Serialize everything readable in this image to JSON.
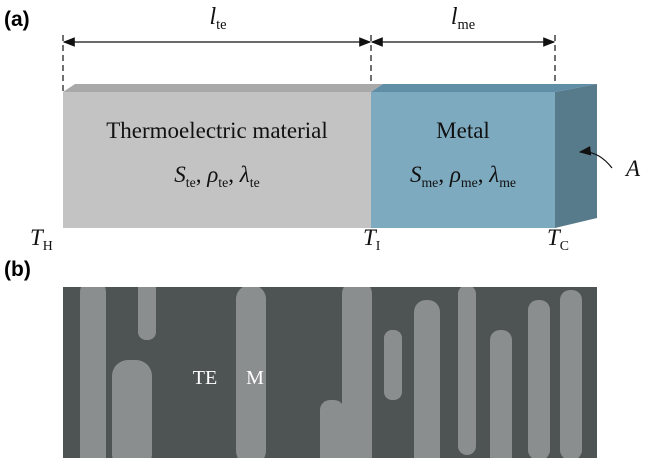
{
  "panel_a": {
    "label": "(a)",
    "lengths": [
      {
        "symbol": "l",
        "subscript": "te"
      },
      {
        "symbol": "l",
        "subscript": "me"
      }
    ],
    "segments": [
      {
        "name": "Thermoelectric material",
        "properties": [
          {
            "symbol": "S",
            "subscript": "te"
          },
          {
            "symbol": "ρ",
            "subscript": "te"
          },
          {
            "symbol": "λ",
            "subscript": "te"
          }
        ]
      },
      {
        "name": "Metal",
        "properties": [
          {
            "symbol": "S",
            "subscript": "me"
          },
          {
            "symbol": "ρ",
            "subscript": "me"
          },
          {
            "symbol": "λ",
            "subscript": "me"
          }
        ]
      }
    ],
    "separator": ",",
    "area_label": "A",
    "temperatures": [
      {
        "symbol": "T",
        "subscript": "H"
      },
      {
        "symbol": "T",
        "subscript": "I"
      },
      {
        "symbol": "T",
        "subscript": "C"
      }
    ]
  },
  "panel_b": {
    "label": "(b)",
    "regions": [
      "TE",
      "M"
    ]
  }
}
